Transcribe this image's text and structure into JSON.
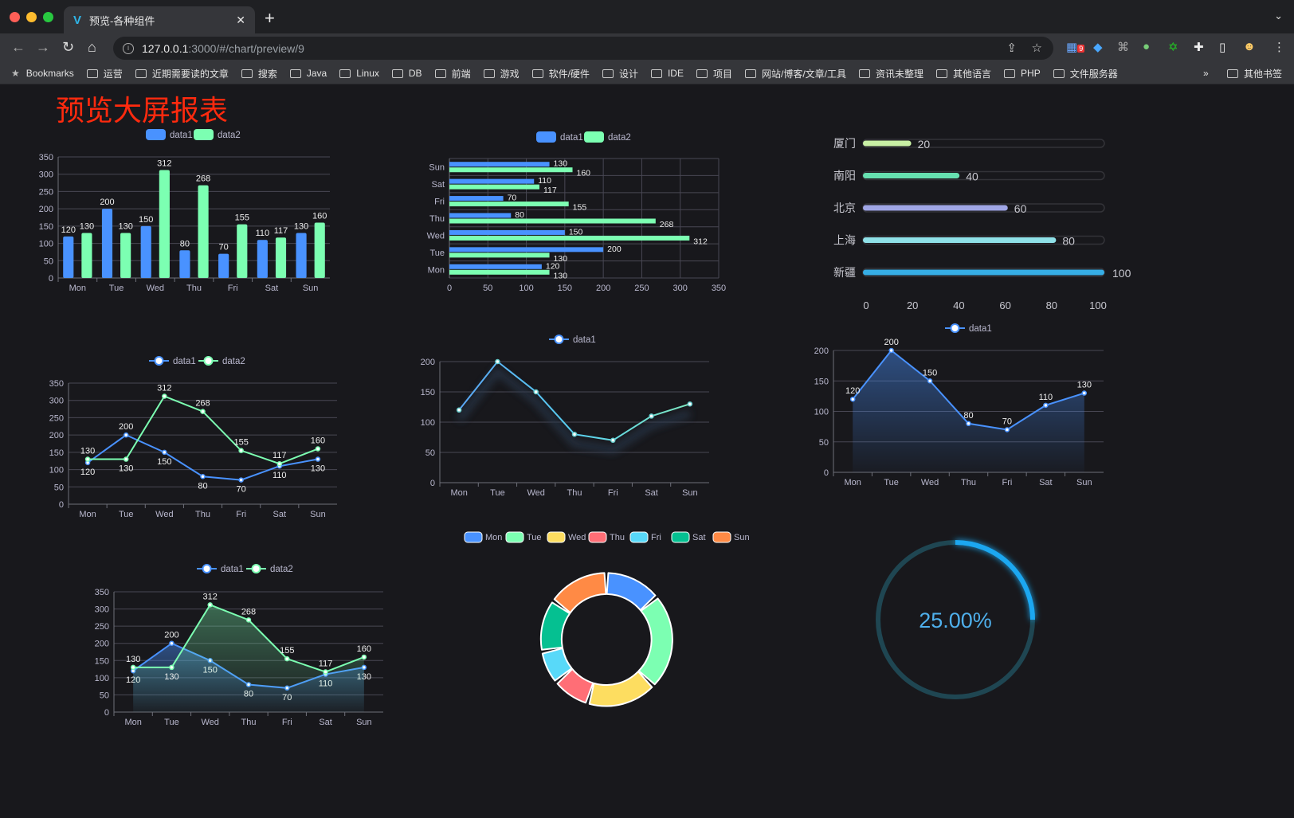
{
  "browser": {
    "tab_title": "预览-各种组件",
    "url_host": "127.0.0.1",
    "url_rest": ":3000/#/chart/preview/9",
    "extension_badge": "9",
    "bookmarks": [
      "Bookmarks",
      "运营",
      "近期需要读的文章",
      "搜索",
      "Java",
      "Linux",
      "DB",
      "前端",
      "游戏",
      "软件/硬件",
      "设计",
      "IDE",
      "项目",
      "网站/博客/文章/工具",
      "资讯未整理",
      "其他语言",
      "PHP",
      "文件服务器"
    ],
    "more": "»",
    "other_bookmarks": "其他书签"
  },
  "page": {
    "title": "预览大屏报表"
  },
  "colors": {
    "blue": "#4992ff",
    "green": "#7cffb2",
    "yellow": "#fddd60",
    "red": "#ff6e76",
    "cyan": "#58d9f9",
    "teal": "#05c091",
    "orange": "#ff8a45",
    "title": "#ff2a0e"
  },
  "chart_data": [
    {
      "id": "bar",
      "type": "bar",
      "categories": [
        "Mon",
        "Tue",
        "Wed",
        "Thu",
        "Fri",
        "Sat",
        "Sun"
      ],
      "ylim": [
        0,
        350
      ],
      "ystep": 50,
      "legend": "top",
      "series": [
        {
          "name": "data1",
          "values": [
            120,
            200,
            150,
            80,
            70,
            110,
            130
          ]
        },
        {
          "name": "data2",
          "values": [
            130,
            130,
            312,
            268,
            155,
            117,
            160
          ]
        }
      ]
    },
    {
      "id": "hbar",
      "type": "bar",
      "orientation": "horizontal",
      "categories": [
        "Mon",
        "Tue",
        "Wed",
        "Thu",
        "Fri",
        "Sat",
        "Sun"
      ],
      "xlim": [
        0,
        350
      ],
      "xstep": 50,
      "legend": "top",
      "series": [
        {
          "name": "data1",
          "values": [
            120,
            200,
            150,
            80,
            70,
            110,
            130
          ]
        },
        {
          "name": "data2",
          "values": [
            130,
            130,
            312,
            268,
            155,
            117,
            160
          ]
        }
      ]
    },
    {
      "id": "progress",
      "type": "bar",
      "orientation": "horizontal",
      "categories": [
        "厦门",
        "南阳",
        "北京",
        "上海",
        "新疆"
      ],
      "values": [
        20,
        40,
        60,
        80,
        100
      ],
      "xlim": [
        0,
        100
      ],
      "xticks": [
        0,
        20,
        40,
        60,
        80,
        100
      ],
      "colors": [
        "#c8f0a4",
        "#66e0b0",
        "#a0a6e6",
        "#8fe1e8",
        "#36aee6"
      ]
    },
    {
      "id": "line1",
      "type": "line",
      "categories": [
        "Mon",
        "Tue",
        "Wed",
        "Thu",
        "Fri",
        "Sat",
        "Sun"
      ],
      "ylim": [
        0,
        350
      ],
      "ystep": 50,
      "legend": "top",
      "series": [
        {
          "name": "data1",
          "values": [
            120,
            200,
            150,
            80,
            70,
            110,
            130
          ]
        },
        {
          "name": "data2",
          "values": [
            130,
            130,
            312,
            268,
            155,
            117,
            160
          ]
        }
      ]
    },
    {
      "id": "line2",
      "type": "line",
      "categories": [
        "Mon",
        "Tue",
        "Wed",
        "Thu",
        "Fri",
        "Sat",
        "Sun"
      ],
      "ylim": [
        0,
        200
      ],
      "ystep": 50,
      "legend": "top",
      "series": [
        {
          "name": "data1",
          "values": [
            120,
            200,
            150,
            80,
            70,
            110,
            130
          ]
        }
      ]
    },
    {
      "id": "area1",
      "type": "area",
      "categories": [
        "Mon",
        "Tue",
        "Wed",
        "Thu",
        "Fri",
        "Sat",
        "Sun"
      ],
      "ylim": [
        0,
        200
      ],
      "ystep": 50,
      "legend": "top",
      "series": [
        {
          "name": "data1",
          "values": [
            120,
            200,
            150,
            80,
            70,
            110,
            130
          ]
        }
      ]
    },
    {
      "id": "area2",
      "type": "area",
      "categories": [
        "Mon",
        "Tue",
        "Wed",
        "Thu",
        "Fri",
        "Sat",
        "Sun"
      ],
      "ylim": [
        0,
        350
      ],
      "ystep": 50,
      "legend": "top",
      "series": [
        {
          "name": "data1",
          "values": [
            120,
            200,
            150,
            80,
            70,
            110,
            130
          ]
        },
        {
          "name": "data2",
          "values": [
            130,
            130,
            312,
            268,
            155,
            117,
            160
          ]
        }
      ]
    },
    {
      "id": "pie",
      "type": "pie",
      "donut": true,
      "legend": "top",
      "categories": [
        "Mon",
        "Tue",
        "Wed",
        "Thu",
        "Fri",
        "Sat",
        "Sun"
      ],
      "values": [
        120,
        200,
        150,
        80,
        70,
        110,
        130
      ]
    },
    {
      "id": "gauge",
      "type": "gauge",
      "value": 25,
      "label": "25.00%"
    }
  ]
}
